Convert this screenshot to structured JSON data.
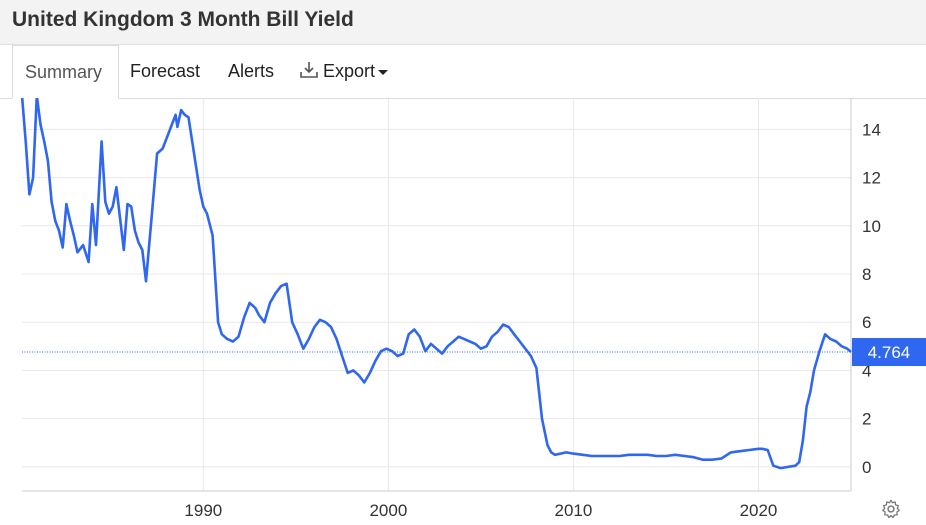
{
  "header": {
    "title": "United Kingdom 3 Month Bill Yield"
  },
  "tabs": [
    {
      "label": "Summary",
      "active": true
    },
    {
      "label": "Forecast"
    },
    {
      "label": "Alerts"
    },
    {
      "label": "Export",
      "icon": "download-icon",
      "has_dropdown": true
    }
  ],
  "icons": {
    "settings": "gear-icon"
  },
  "colors": {
    "line": "#2f67f0",
    "current_label_bg": "#2f67f0",
    "grid": "#e8e8e8"
  },
  "chart_data": {
    "type": "line",
    "title": "United Kingdom 3 Month Bill Yield",
    "xlabel": "",
    "ylabel": "",
    "xlim": [
      1980.2,
      2025.0
    ],
    "ylim": [
      -1.0,
      15.3
    ],
    "x_ticks": [
      1990,
      2000,
      2010,
      2020
    ],
    "y_ticks": [
      0,
      2,
      4,
      6,
      8,
      10,
      12,
      14
    ],
    "grid": true,
    "current_value": 4.764,
    "current_label": "4.764",
    "x": [
      1980.2,
      1980.4,
      1980.6,
      1980.8,
      1981.0,
      1981.2,
      1981.4,
      1981.6,
      1981.8,
      1982.0,
      1982.2,
      1982.4,
      1982.6,
      1982.8,
      1983.0,
      1983.2,
      1983.5,
      1983.8,
      1984.0,
      1984.2,
      1984.5,
      1984.7,
      1984.9,
      1985.1,
      1985.3,
      1985.5,
      1985.7,
      1985.9,
      1986.1,
      1986.3,
      1986.5,
      1986.7,
      1986.9,
      1987.2,
      1987.5,
      1987.8,
      1988.1,
      1988.3,
      1988.5,
      1988.6,
      1988.8,
      1989.0,
      1989.2,
      1989.4,
      1989.6,
      1989.8,
      1990.0,
      1990.2,
      1990.5,
      1990.8,
      1991.0,
      1991.3,
      1991.6,
      1991.9,
      1992.2,
      1992.5,
      1992.8,
      1993.0,
      1993.3,
      1993.6,
      1993.9,
      1994.2,
      1994.5,
      1994.8,
      1995.1,
      1995.4,
      1995.7,
      1996.0,
      1996.3,
      1996.6,
      1996.9,
      1997.2,
      1997.5,
      1997.8,
      1998.1,
      1998.4,
      1998.7,
      1999.0,
      1999.3,
      1999.6,
      1999.9,
      2000.2,
      2000.5,
      2000.8,
      2001.1,
      2001.4,
      2001.7,
      2002.0,
      2002.3,
      2002.6,
      2002.9,
      2003.2,
      2003.5,
      2003.8,
      2004.1,
      2004.4,
      2004.7,
      2005.0,
      2005.3,
      2005.6,
      2005.9,
      2006.2,
      2006.5,
      2006.8,
      2007.1,
      2007.4,
      2007.7,
      2008.0,
      2008.3,
      2008.6,
      2008.8,
      2009.0,
      2009.3,
      2009.6,
      2010.0,
      2010.5,
      2011.0,
      2011.5,
      2012.0,
      2012.5,
      2013.0,
      2013.5,
      2014.0,
      2014.5,
      2015.0,
      2015.5,
      2016.0,
      2016.5,
      2017.0,
      2017.5,
      2018.0,
      2018.5,
      2019.0,
      2019.5,
      2020.0,
      2020.2,
      2020.5,
      2020.8,
      2021.2,
      2021.6,
      2022.0,
      2022.2,
      2022.4,
      2022.6,
      2022.8,
      2023.0,
      2023.3,
      2023.6,
      2023.9,
      2024.2,
      2024.5,
      2024.8,
      2025.0
    ],
    "values": [
      15.4,
      13.5,
      11.3,
      12.0,
      15.4,
      14.2,
      13.5,
      12.7,
      11.0,
      10.2,
      9.8,
      9.1,
      10.9,
      10.2,
      9.6,
      8.9,
      9.2,
      8.5,
      10.9,
      9.2,
      13.5,
      11.0,
      10.5,
      10.8,
      11.6,
      10.3,
      9.0,
      10.9,
      10.8,
      9.8,
      9.3,
      9.0,
      7.7,
      10.3,
      13.0,
      13.2,
      13.8,
      14.2,
      14.6,
      14.1,
      14.8,
      14.6,
      14.5,
      13.5,
      12.5,
      11.5,
      10.8,
      10.5,
      9.6,
      6.0,
      5.5,
      5.3,
      5.2,
      5.4,
      6.2,
      6.8,
      6.6,
      6.3,
      6.0,
      6.8,
      7.2,
      7.5,
      7.6,
      6.0,
      5.5,
      4.9,
      5.3,
      5.8,
      6.1,
      6.0,
      5.8,
      5.3,
      4.6,
      3.9,
      4.0,
      3.8,
      3.5,
      3.9,
      4.4,
      4.8,
      4.9,
      4.8,
      4.6,
      4.7,
      5.5,
      5.7,
      5.4,
      4.8,
      5.1,
      4.9,
      4.7,
      5.0,
      5.2,
      5.4,
      5.3,
      5.2,
      5.1,
      4.9,
      5.0,
      5.4,
      5.6,
      5.9,
      5.8,
      5.5,
      5.2,
      4.9,
      4.6,
      4.1,
      2.0,
      0.9,
      0.6,
      0.5,
      0.55,
      0.6,
      0.55,
      0.5,
      0.45,
      0.45,
      0.45,
      0.45,
      0.5,
      0.5,
      0.5,
      0.45,
      0.45,
      0.5,
      0.45,
      0.4,
      0.3,
      0.3,
      0.35,
      0.6,
      0.65,
      0.7,
      0.75,
      0.75,
      0.7,
      0.05,
      -0.05,
      0.0,
      0.05,
      0.2,
      1.1,
      2.5,
      3.1,
      4.0,
      4.8,
      5.5,
      5.3,
      5.2,
      5.0,
      4.9,
      4.76
    ]
  }
}
